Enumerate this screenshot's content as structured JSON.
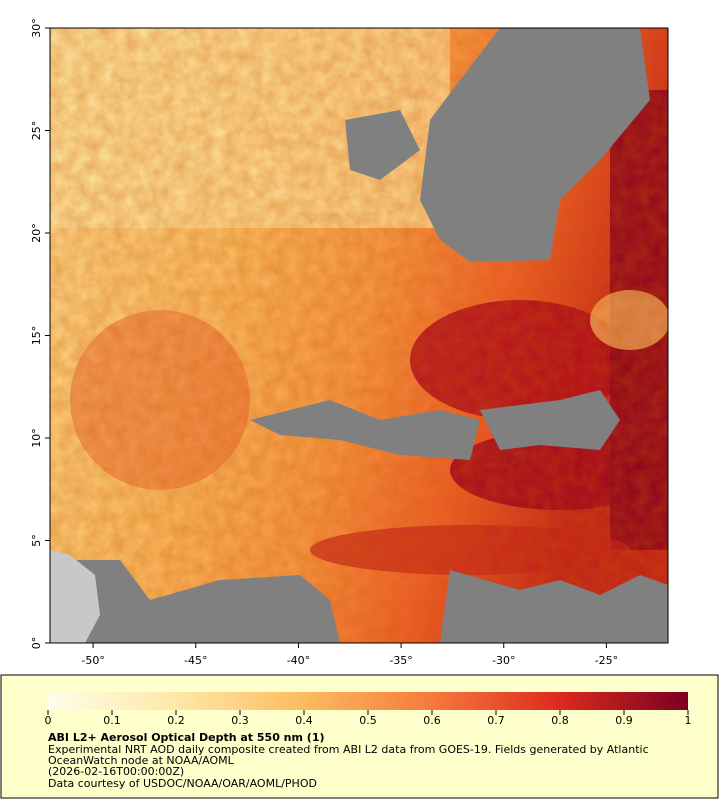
{
  "map": {
    "xlim": [
      -52.1,
      -22
    ],
    "ylim": [
      0,
      30
    ],
    "xticks": [
      {
        "value": -50,
        "label": "-50°"
      },
      {
        "value": -45,
        "label": "-45°"
      },
      {
        "value": -40,
        "label": "-40°"
      },
      {
        "value": -35,
        "label": "-35°"
      },
      {
        "value": -30,
        "label": "-30°"
      },
      {
        "value": -25,
        "label": "-25°"
      }
    ],
    "yticks": [
      {
        "value": 0,
        "label": "0°"
      },
      {
        "value": 5,
        "label": "5°"
      },
      {
        "value": 10,
        "label": "10°"
      },
      {
        "value": 15,
        "label": "15°"
      },
      {
        "value": 20,
        "label": "20°"
      },
      {
        "value": 25,
        "label": "25°"
      },
      {
        "value": 30,
        "label": "30°"
      }
    ]
  },
  "colorbar": {
    "lim": [
      0,
      1
    ],
    "ticks": [
      0,
      0.1,
      0.2,
      0.3,
      0.4,
      0.5,
      0.6,
      0.7,
      0.8,
      0.9,
      1
    ]
  },
  "caption": {
    "title": "ABI L2+ Aerosol Optical Depth at 550 nm (1)",
    "lines": [
      "Experimental NRT AOD daily composite created from ABI L2 data from GOES-19. Fields generated by Atlantic",
      "OceanWatch node at NOAA/AOML",
      "(2026-02-16T00:00:00Z)",
      "Data courtesy of USDOC/NOAA/OAR/AOML/PHOD"
    ]
  }
}
